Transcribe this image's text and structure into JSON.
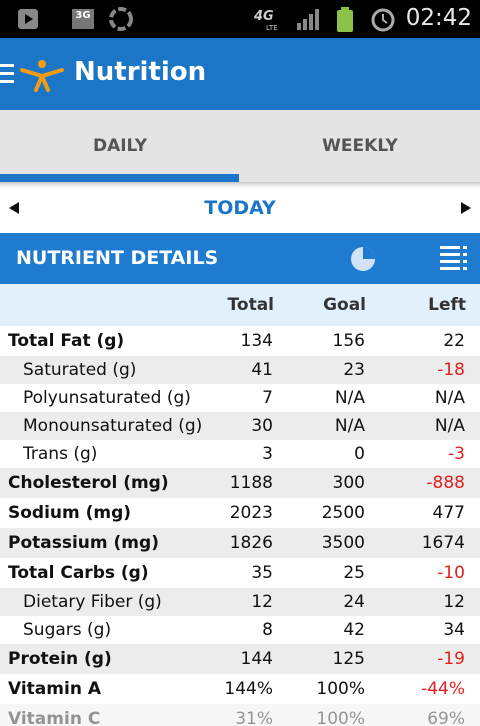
{
  "status_bar": {
    "icon_3g": "3G",
    "network": "4G",
    "network_sub": "LTE",
    "time": "02:42"
  },
  "app_bar": {
    "title": "Nutrition"
  },
  "tabs": [
    "DAILY",
    "WEEKLY"
  ],
  "date_nav": {
    "label": "TODAY"
  },
  "section": {
    "title": "NUTRIENT DETAILS"
  },
  "table": {
    "columns": [
      "Total",
      "Goal",
      "Left"
    ],
    "rows": [
      [
        "Total Fat (g)",
        "134",
        "156",
        "22"
      ],
      [
        "Saturated (g)",
        "41",
        "23",
        "-18"
      ],
      [
        "Polyunsaturated (g)",
        "7",
        "N/A",
        "N/A"
      ],
      [
        "Monounsaturated (g)",
        "30",
        "N/A",
        "N/A"
      ],
      [
        "Trans (g)",
        "3",
        "0",
        "-3"
      ],
      [
        "Cholesterol (mg)",
        "1188",
        "300",
        "-888"
      ],
      [
        "Sodium (mg)",
        "2023",
        "2500",
        "477"
      ],
      [
        "Potassium (mg)",
        "1826",
        "3500",
        "1674"
      ],
      [
        "Total Carbs (g)",
        "35",
        "25",
        "-10"
      ],
      [
        "Dietary Fiber (g)",
        "12",
        "24",
        "12"
      ],
      [
        "Sugars (g)",
        "8",
        "42",
        "34"
      ],
      [
        "Protein (g)",
        "144",
        "125",
        "-19"
      ],
      [
        "Vitamin A",
        "144%",
        "100%",
        "-44%"
      ],
      [
        "Vitamin C",
        "31%",
        "100%",
        "69%"
      ]
    ]
  }
}
